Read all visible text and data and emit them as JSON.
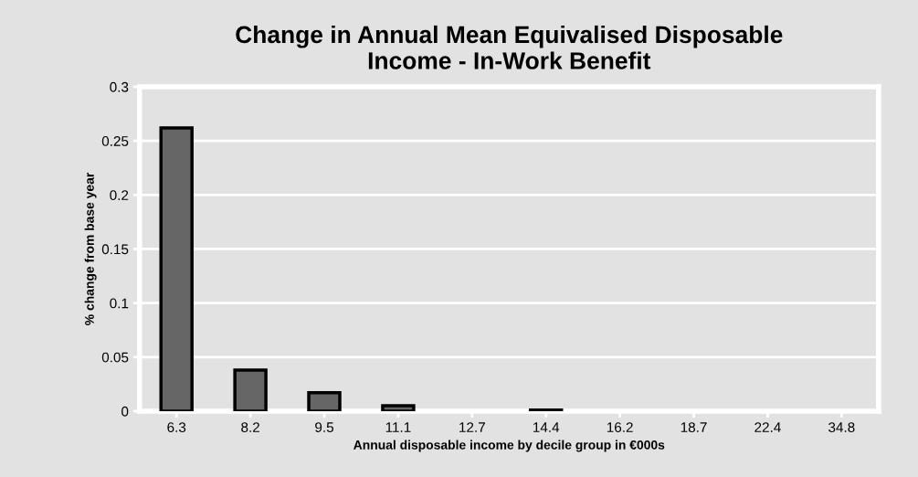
{
  "chart_data": {
    "type": "bar",
    "title": "Change in Annual Mean Equivalised Disposable\nIncome - In-Work Benefit",
    "xlabel": "Annual disposable income by decile group in €000s",
    "ylabel": "% change from base year",
    "categories": [
      "6.3",
      "8.2",
      "9.5",
      "11.1",
      "12.7",
      "14.4",
      "16.2",
      "18.7",
      "22.4",
      "34.8"
    ],
    "values": [
      0.262,
      0.038,
      0.017,
      0.005,
      0,
      0.001,
      0,
      0,
      0,
      0
    ],
    "color": "#666666",
    "ylim": [
      0,
      0.3
    ],
    "yticks": [
      0,
      0.05,
      0.1,
      0.15,
      0.2,
      0.25,
      0.3
    ],
    "grid": "y"
  }
}
